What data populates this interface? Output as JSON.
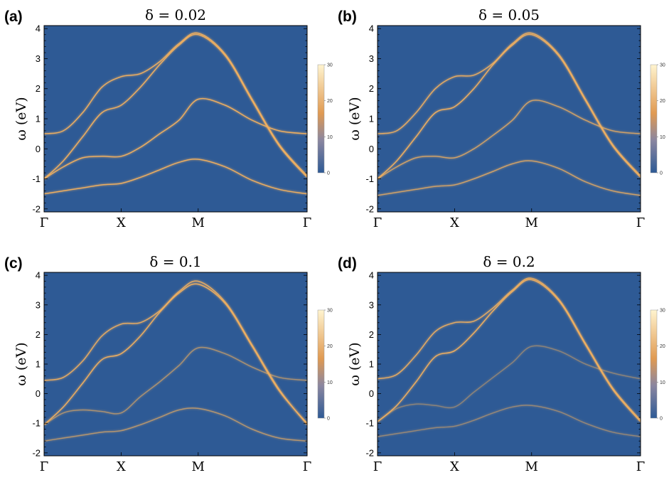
{
  "chart_data": [
    {
      "type": "heatmap",
      "panel_label": "(a)",
      "title": "δ = 0.02",
      "ylabel": "ω (eV)",
      "xlabel": "",
      "x_ticks": [
        "Γ",
        "X",
        "M",
        "Γ"
      ],
      "x_tick_positions": [
        0,
        1,
        2,
        3.414
      ],
      "y_ticks": [
        "4",
        "3",
        "2",
        "1",
        "0",
        "-1",
        "-2"
      ],
      "y_tick_values": [
        4,
        3,
        2,
        1,
        0,
        -1,
        -2
      ],
      "ylim": [
        -2.1,
        4.1
      ],
      "colorbar": {
        "ticks": [
          "30",
          "20",
          "10",
          "0"
        ],
        "tick_values": [
          30,
          20,
          10,
          0
        ],
        "range": [
          0,
          30
        ]
      },
      "background_color": "#2e5a95",
      "band_color": "#f0b060",
      "series": [
        {
          "name": "band 1",
          "intensity": 0.95,
          "x": [
            0,
            0.25,
            0.5,
            0.75,
            1,
            1.25,
            1.5,
            1.75,
            2,
            2.35,
            2.7,
            3.05,
            3.414
          ],
          "y": [
            -1.0,
            -0.4,
            0.4,
            1.2,
            1.45,
            2.05,
            2.8,
            3.45,
            3.8,
            3.1,
            1.6,
            0.1,
            -0.95
          ]
        },
        {
          "name": "band 2",
          "intensity": 0.95,
          "x": [
            0,
            0.25,
            0.5,
            0.75,
            1,
            1.25,
            1.5,
            1.75,
            2,
            2.35,
            2.7,
            3.05,
            3.414
          ],
          "y": [
            -1.0,
            -0.6,
            -0.3,
            -0.25,
            -0.25,
            0.05,
            0.5,
            0.95,
            1.65,
            1.45,
            0.95,
            0.6,
            0.5
          ]
        },
        {
          "name": "band 3",
          "intensity": 0.95,
          "x": [
            0,
            0.25,
            0.5,
            0.75,
            1,
            1.25,
            1.5,
            1.75,
            2,
            2.35,
            2.7,
            3.05,
            3.414
          ],
          "y": [
            -1.5,
            -1.4,
            -1.3,
            -1.2,
            -1.15,
            -0.95,
            -0.7,
            -0.45,
            -0.35,
            -0.6,
            -1.05,
            -1.35,
            -1.5
          ]
        },
        {
          "name": "band 4",
          "intensity": 0.95,
          "x": [
            0,
            0.25,
            0.5,
            0.75,
            1,
            1.25,
            1.5,
            1.75,
            2,
            2.35,
            2.7,
            3.05,
            3.414
          ],
          "y": [
            0.5,
            0.6,
            1.2,
            2.05,
            2.4,
            2.5,
            2.9,
            3.5,
            3.85,
            3.15,
            1.65,
            0.15,
            -0.9
          ]
        }
      ]
    },
    {
      "type": "heatmap",
      "panel_label": "(b)",
      "title": "δ = 0.05",
      "ylabel": "ω (eV)",
      "xlabel": "",
      "x_ticks": [
        "Γ",
        "X",
        "M",
        "Γ"
      ],
      "x_tick_positions": [
        0,
        1,
        2,
        3.414
      ],
      "y_ticks": [
        "4",
        "3",
        "2",
        "1",
        "0",
        "-1",
        "-2"
      ],
      "y_tick_values": [
        4,
        3,
        2,
        1,
        0,
        -1,
        -2
      ],
      "ylim": [
        -2.1,
        4.1
      ],
      "colorbar": {
        "ticks": [
          "30",
          "20",
          "10",
          "0"
        ],
        "tick_values": [
          30,
          20,
          10,
          0
        ],
        "range": [
          0,
          30
        ]
      },
      "background_color": "#2e5a95",
      "band_color": "#f0b060",
      "series": [
        {
          "name": "band 1",
          "intensity": 0.95,
          "x": [
            0,
            0.25,
            0.5,
            0.75,
            1,
            1.25,
            1.5,
            1.75,
            2,
            2.35,
            2.7,
            3.05,
            3.414
          ],
          "y": [
            -1.0,
            -0.4,
            0.4,
            1.2,
            1.4,
            2.0,
            2.8,
            3.45,
            3.8,
            3.1,
            1.6,
            0.1,
            -0.95
          ]
        },
        {
          "name": "band 2",
          "intensity": 0.75,
          "x": [
            0,
            0.25,
            0.5,
            0.75,
            1,
            1.25,
            1.5,
            1.75,
            2,
            2.35,
            2.7,
            3.05,
            3.414
          ],
          "y": [
            -1.0,
            -0.6,
            -0.3,
            -0.25,
            -0.3,
            0.0,
            0.45,
            0.95,
            1.6,
            1.4,
            0.95,
            0.6,
            0.5
          ]
        },
        {
          "name": "band 3",
          "intensity": 0.75,
          "x": [
            0,
            0.25,
            0.5,
            0.75,
            1,
            1.25,
            1.5,
            1.75,
            2,
            2.35,
            2.7,
            3.05,
            3.414
          ],
          "y": [
            -1.55,
            -1.45,
            -1.35,
            -1.25,
            -1.2,
            -1.0,
            -0.75,
            -0.5,
            -0.4,
            -0.65,
            -1.1,
            -1.4,
            -1.55
          ]
        },
        {
          "name": "band 4",
          "intensity": 0.9,
          "x": [
            0,
            0.25,
            0.5,
            0.75,
            1,
            1.25,
            1.5,
            1.75,
            2,
            2.35,
            2.7,
            3.05,
            3.414
          ],
          "y": [
            0.5,
            0.6,
            1.2,
            2.0,
            2.4,
            2.45,
            2.85,
            3.5,
            3.85,
            3.15,
            1.65,
            0.15,
            -0.9
          ]
        }
      ]
    },
    {
      "type": "heatmap",
      "panel_label": "(c)",
      "title": "δ = 0.1",
      "ylabel": "ω (eV)",
      "xlabel": "",
      "x_ticks": [
        "Γ",
        "X",
        "M",
        "Γ"
      ],
      "x_tick_positions": [
        0,
        1,
        2,
        3.414
      ],
      "y_ticks": [
        "4",
        "3",
        "2",
        "1",
        "0",
        "-1",
        "-2"
      ],
      "y_tick_values": [
        4,
        3,
        2,
        1,
        0,
        -1,
        -2
      ],
      "ylim": [
        -2.1,
        4.1
      ],
      "colorbar": {
        "ticks": [
          "30",
          "20",
          "10",
          "0"
        ],
        "tick_values": [
          30,
          20,
          10,
          0
        ],
        "range": [
          0,
          30
        ]
      },
      "background_color": "#2e5a95",
      "band_color": "#f0b060",
      "series": [
        {
          "name": "band 1",
          "intensity": 0.95,
          "x": [
            0,
            0.25,
            0.5,
            0.75,
            1,
            1.25,
            1.5,
            1.75,
            2,
            2.35,
            2.7,
            3.05,
            3.414
          ],
          "y": [
            -1.05,
            -0.45,
            0.35,
            1.15,
            1.35,
            1.95,
            2.75,
            3.4,
            3.7,
            3.05,
            1.6,
            0.1,
            -1.0
          ]
        },
        {
          "name": "band 2",
          "intensity": 0.55,
          "x": [
            0,
            0.25,
            0.5,
            0.75,
            1,
            1.25,
            1.5,
            1.75,
            2,
            2.35,
            2.7,
            3.05,
            3.414
          ],
          "y": [
            -1.05,
            -0.65,
            -0.55,
            -0.6,
            -0.65,
            -0.1,
            0.4,
            0.95,
            1.55,
            1.35,
            0.9,
            0.55,
            0.45
          ]
        },
        {
          "name": "band 3",
          "intensity": 0.6,
          "x": [
            0,
            0.25,
            0.5,
            0.75,
            1,
            1.25,
            1.5,
            1.75,
            2,
            2.35,
            2.7,
            3.05,
            3.414
          ],
          "y": [
            -1.6,
            -1.5,
            -1.4,
            -1.3,
            -1.25,
            -1.05,
            -0.8,
            -0.55,
            -0.5,
            -0.75,
            -1.2,
            -1.5,
            -1.6
          ]
        },
        {
          "name": "band 4",
          "intensity": 0.9,
          "x": [
            0,
            0.25,
            0.5,
            0.75,
            1,
            1.25,
            1.5,
            1.75,
            2,
            2.35,
            2.7,
            3.05,
            3.414
          ],
          "y": [
            0.45,
            0.55,
            1.1,
            1.95,
            2.35,
            2.4,
            2.8,
            3.45,
            3.8,
            3.1,
            1.65,
            0.15,
            -1.05
          ]
        }
      ]
    },
    {
      "type": "heatmap",
      "panel_label": "(d)",
      "title": "δ = 0.2",
      "ylabel": "ω (eV)",
      "xlabel": "",
      "x_ticks": [
        "Γ",
        "X",
        "M",
        "Γ"
      ],
      "x_tick_positions": [
        0,
        1,
        2,
        3.414
      ],
      "y_ticks": [
        "4",
        "3",
        "2",
        "1",
        "0",
        "-1",
        "-2"
      ],
      "y_tick_values": [
        4,
        3,
        2,
        1,
        0,
        -1,
        -2
      ],
      "ylim": [
        -2.1,
        4.1
      ],
      "colorbar": {
        "ticks": [
          "30",
          "20",
          "10",
          "0"
        ],
        "tick_values": [
          30,
          20,
          10,
          0
        ],
        "range": [
          0,
          30
        ]
      },
      "background_color": "#2e5a95",
      "band_color": "#f0b060",
      "series": [
        {
          "name": "band 1",
          "intensity": 0.95,
          "x": [
            0,
            0.25,
            0.5,
            0.75,
            1,
            1.25,
            1.5,
            1.75,
            2,
            2.35,
            2.7,
            3.05,
            3.414
          ],
          "y": [
            -0.95,
            -0.4,
            0.4,
            1.25,
            1.45,
            2.05,
            2.8,
            3.45,
            3.85,
            3.15,
            1.65,
            0.15,
            -0.95
          ]
        },
        {
          "name": "band 2",
          "intensity": 0.4,
          "x": [
            0,
            0.25,
            0.5,
            0.75,
            1,
            1.25,
            1.5,
            1.75,
            2,
            2.35,
            2.7,
            3.05,
            3.414
          ],
          "y": [
            -0.95,
            -0.5,
            -0.35,
            -0.4,
            -0.45,
            0.05,
            0.55,
            1.05,
            1.6,
            1.45,
            1.0,
            0.7,
            0.5
          ]
        },
        {
          "name": "band 3",
          "intensity": 0.45,
          "x": [
            0,
            0.25,
            0.5,
            0.75,
            1,
            1.25,
            1.5,
            1.75,
            2,
            2.35,
            2.7,
            3.05,
            3.414
          ],
          "y": [
            -1.45,
            -1.35,
            -1.25,
            -1.15,
            -1.1,
            -0.9,
            -0.65,
            -0.45,
            -0.4,
            -0.6,
            -1.0,
            -1.3,
            -1.45
          ]
        },
        {
          "name": "band 4",
          "intensity": 0.9,
          "x": [
            0,
            0.25,
            0.5,
            0.75,
            1,
            1.25,
            1.5,
            1.75,
            2,
            2.35,
            2.7,
            3.05,
            3.414
          ],
          "y": [
            0.5,
            0.65,
            1.3,
            2.1,
            2.4,
            2.45,
            2.9,
            3.5,
            3.9,
            3.2,
            1.7,
            0.2,
            -0.9
          ]
        }
      ]
    }
  ]
}
